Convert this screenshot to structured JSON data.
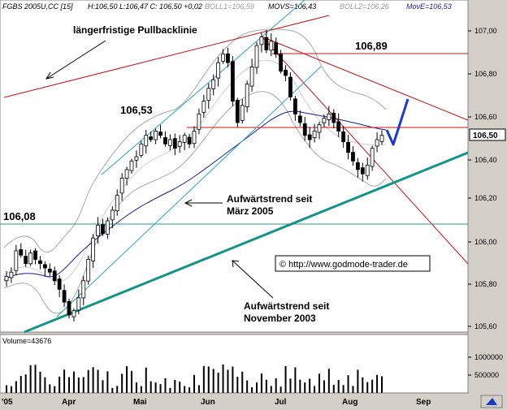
{
  "header": {
    "symbol": "FGBS 2005U,CC [15]",
    "ohlc": "H:106,50 L:106,47 C: 106,50 +0,02",
    "boll1": "BOLL1=106,59",
    "movs": "MOVS=106,43",
    "boll2": "BOLL2=106,26",
    "move": "MovE=106,53"
  },
  "annotations": {
    "pullback_line": "längerfristige Pullbacklinie",
    "level_10689": "106,89",
    "level_10653": "106,53",
    "level_10608": "106,08",
    "trend_march_1": "Aufwärtstrend seit",
    "trend_march_2": "März 2005",
    "trend_nov_1": "Aufwärtstrend seit",
    "trend_nov_2": "November 2003",
    "copyright": "© http://www.godmode-trader.de"
  },
  "current_price_label": "106,50",
  "volume_label": "Volume=43676",
  "colors": {
    "candle_up": "#ffffff",
    "candle_down": "#000000",
    "bollinger": "#a8a8a8",
    "moving_avg": "#1a1a9a",
    "pullback": "#cc1111",
    "resistance": "#cc1111",
    "support_level": "#2a9a8a",
    "trend_channel": "#2aa6c8",
    "long_trend": "#139488",
    "projection": "#1a3ad0",
    "price_box": "#ffffff"
  },
  "chart_data": {
    "type": "candlestick",
    "title": "FGBS 2005U,CC [15]",
    "ylim": [
      105.58,
      107.08
    ],
    "y_ticks": [
      "107,00",
      "106,80",
      "106,60",
      "106,40",
      "106,20",
      "106,00",
      "105,80",
      "105,60"
    ],
    "x_ticks": [
      "'05",
      "Apr",
      "Mai",
      "Jun",
      "Jul",
      "Aug",
      "Sep"
    ],
    "volume_ticks": [
      "1000000",
      "500000"
    ],
    "horizontal_levels": [
      106.89,
      106.53,
      106.08
    ],
    "series": [
      {
        "name": "Price",
        "values": [
          105.84,
          105.86,
          105.96,
          105.94,
          105.9,
          105.95,
          105.92,
          105.9,
          105.88,
          105.86,
          105.82,
          105.78,
          105.72,
          105.66,
          105.68,
          105.74,
          105.82,
          105.92,
          106.02,
          106.08,
          106.04,
          106.1,
          106.15,
          106.22,
          106.3,
          106.34,
          106.38,
          106.4,
          106.46,
          106.5,
          106.48,
          106.52,
          106.5,
          106.46,
          106.48,
          106.44,
          106.47,
          106.5,
          106.46,
          106.52,
          106.6,
          106.66,
          106.72,
          106.76,
          106.84,
          106.88,
          106.84,
          106.66,
          106.56,
          106.64,
          106.74,
          106.82,
          106.92,
          106.96,
          106.9,
          106.94,
          106.88,
          106.8,
          106.78,
          106.68,
          106.6,
          106.56,
          106.5,
          106.48,
          106.52,
          106.55,
          106.58,
          106.6,
          106.56,
          106.52,
          106.47,
          106.42,
          106.38,
          106.34,
          106.32,
          106.36,
          106.44,
          106.48,
          106.5
        ]
      }
    ]
  }
}
